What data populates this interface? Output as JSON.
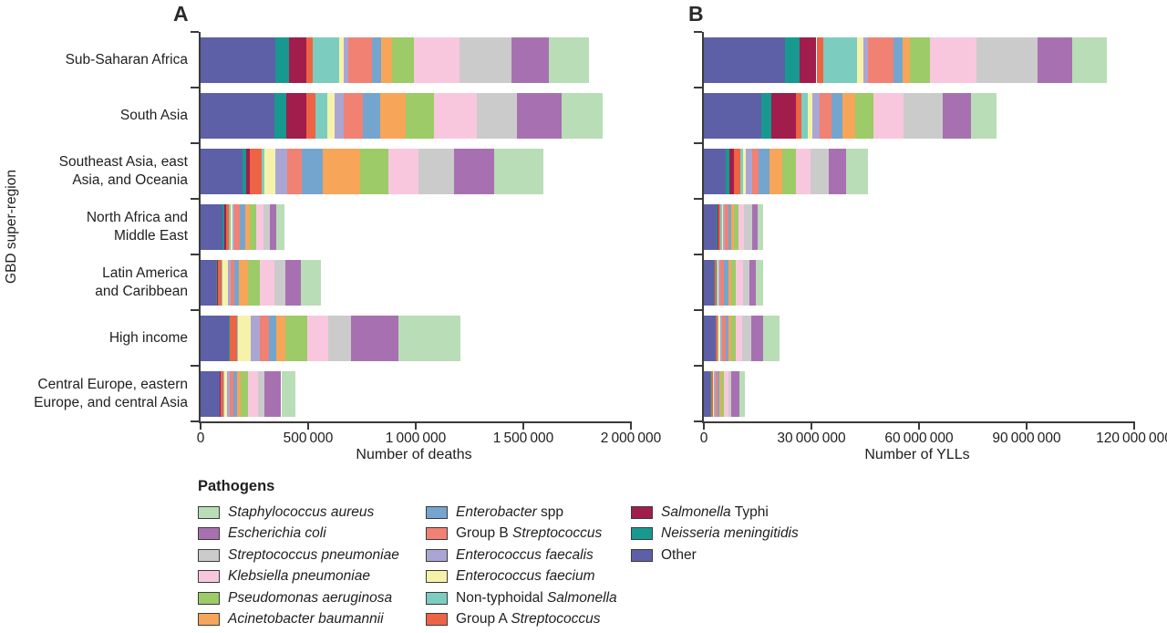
{
  "figure": {
    "panel_a_letter": "A",
    "panel_b_letter": "B",
    "y_axis_title": "GBD super-region",
    "legend_title": "Pathogens"
  },
  "pathogens": [
    {
      "id": "other",
      "pre": "Other",
      "italic": "",
      "post": "",
      "color": "#5D60A6"
    },
    {
      "id": "neisseria-meningitidis",
      "pre": "",
      "italic": "Neisseria meningitidis",
      "post": "",
      "color": "#17998F"
    },
    {
      "id": "salmonella-typhi",
      "pre": "",
      "italic": "Salmonella",
      "post": " Typhi",
      "color": "#A01D4C"
    },
    {
      "id": "group-a-streptococcus",
      "pre": "Group A ",
      "italic": "Streptococcus",
      "post": "",
      "color": "#EE6344"
    },
    {
      "id": "non-typhoidal-salmonella",
      "pre": "Non-typhoidal ",
      "italic": "Salmonella",
      "post": "",
      "color": "#7CCDBF"
    },
    {
      "id": "enterococcus-faecium",
      "pre": "",
      "italic": "Enterococcus faecium",
      "post": "",
      "color": "#F7F2A9"
    },
    {
      "id": "enterococcus-faecalis",
      "pre": "",
      "italic": "Enterococcus faecalis",
      "post": "",
      "color": "#AAA6D3"
    },
    {
      "id": "group-b-streptococcus",
      "pre": "Group B ",
      "italic": "Streptococcus",
      "post": "",
      "color": "#F08173"
    },
    {
      "id": "enterobacter-spp",
      "pre": "",
      "italic": "Enterobacter",
      "post": " spp",
      "color": "#74A5CF"
    },
    {
      "id": "acinetobacter-baumannii",
      "pre": "",
      "italic": "Acinetobacter baumannii",
      "post": "",
      "color": "#F7A558"
    },
    {
      "id": "pseudomonas-aeruginosa",
      "pre": "",
      "italic": "Pseudomonas aeruginosa",
      "post": "",
      "color": "#9CCB67"
    },
    {
      "id": "klebsiella-pneumoniae",
      "pre": "",
      "italic": "Klebsiella pneumoniae",
      "post": "",
      "color": "#F8C7DE"
    },
    {
      "id": "streptococcus-pneumoniae",
      "pre": "",
      "italic": "Streptococcus pneumoniae",
      "post": "",
      "color": "#CBCBCB"
    },
    {
      "id": "escherichia-coli",
      "pre": "",
      "italic": "Escherichia coli",
      "post": "",
      "color": "#A771B1"
    },
    {
      "id": "staphylococcus-aureus",
      "pre": "",
      "italic": "Staphylococcus aureus",
      "post": "",
      "color": "#B9DDB6"
    }
  ],
  "chart_data": [
    {
      "type": "bar",
      "panel": "A",
      "orientation": "horizontal",
      "stacked": true,
      "xlabel": "Number of deaths",
      "ylabel": "GBD super-region",
      "xlim": [
        0,
        2000000
      ],
      "xticks": [
        0,
        500000,
        1000000,
        1500000,
        2000000
      ],
      "xtick_labels": [
        "0",
        "500 000",
        "1 000 000",
        "1 500 000",
        "2 000 000"
      ],
      "legend_position": "bottom",
      "grid": false,
      "categories": [
        "Sub-Saharan Africa",
        "South Asia",
        "Southeast Asia, east\nAsia, and Oceania",
        "North Africa and\nMiddle East",
        "Latin America\nand Caribbean",
        "High income",
        "Central Europe, eastern\nEurope, and central Asia"
      ],
      "series": [
        {
          "name": "Other",
          "values": [
            348000,
            345000,
            196000,
            100000,
            74000,
            130000,
            87000
          ]
        },
        {
          "name": "Neisseria meningitidis",
          "values": [
            65000,
            52000,
            17000,
            9000,
            4000,
            4000,
            4000
          ]
        },
        {
          "name": "Salmonella Typhi",
          "values": [
            78000,
            96000,
            17000,
            9000,
            4000,
            2000,
            2000
          ]
        },
        {
          "name": "Group A Streptococcus",
          "values": [
            30000,
            43000,
            52000,
            13000,
            17000,
            35000,
            13000
          ]
        },
        {
          "name": "Non-typhoidal Salmonella",
          "values": [
            122000,
            52000,
            13000,
            9000,
            4000,
            4000,
            4000
          ]
        },
        {
          "name": "Enterococcus faecium",
          "values": [
            22000,
            35000,
            52000,
            9000,
            26000,
            57000,
            13000
          ]
        },
        {
          "name": "Enterococcus faecalis",
          "values": [
            22000,
            43000,
            57000,
            9000,
            9000,
            43000,
            13000
          ]
        },
        {
          "name": "Group B Streptococcus",
          "values": [
            109000,
            87000,
            65000,
            26000,
            17000,
            43000,
            17000
          ]
        },
        {
          "name": "Enterobacter spp",
          "values": [
            43000,
            83000,
            100000,
            22000,
            22000,
            35000,
            17000
          ]
        },
        {
          "name": "Acinetobacter baumannii",
          "values": [
            52000,
            117000,
            174000,
            22000,
            43000,
            43000,
            17000
          ]
        },
        {
          "name": "Pseudomonas aeruginosa",
          "values": [
            100000,
            130000,
            130000,
            30000,
            57000,
            100000,
            35000
          ]
        },
        {
          "name": "Klebsiella pneumoniae",
          "values": [
            213000,
            200000,
            139000,
            35000,
            65000,
            96000,
            43000
          ]
        },
        {
          "name": "Streptococcus pneumoniae",
          "values": [
            243000,
            187000,
            165000,
            30000,
            52000,
            109000,
            30000
          ]
        },
        {
          "name": "Escherichia coli",
          "values": [
            170000,
            210000,
            187000,
            30000,
            74000,
            217000,
            80000
          ]
        },
        {
          "name": "Staphylococcus aureus",
          "values": [
            187000,
            190000,
            230000,
            35000,
            90000,
            291000,
            65000
          ]
        }
      ]
    },
    {
      "type": "bar",
      "panel": "B",
      "orientation": "horizontal",
      "stacked": true,
      "xlabel": "Number of YLLs",
      "ylabel": "GBD super-region",
      "xlim": [
        0,
        120000000
      ],
      "xticks": [
        0,
        30000000,
        60000000,
        90000000,
        120000000
      ],
      "xtick_labels": [
        "0",
        "30 000 000",
        "60 000 000",
        "90 000 000",
        "120 000 000"
      ],
      "legend_position": "bottom",
      "grid": false,
      "categories": [
        "Sub-Saharan Africa",
        "South Asia",
        "Southeast Asia, east\nAsia, and Oceania",
        "North Africa and\nMiddle East",
        "Latin America\nand Caribbean",
        "High income",
        "Central Europe, eastern\nEurope, and central Asia"
      ],
      "series": [
        {
          "name": "Other",
          "values": [
            22500000,
            16000000,
            6100000,
            3500000,
            2700000,
            3200000,
            1900000
          ]
        },
        {
          "name": "Neisseria meningitidis",
          "values": [
            4300000,
            2800000,
            1100000,
            300000,
            300000,
            100000,
            100000
          ]
        },
        {
          "name": "Salmonella Typhi",
          "values": [
            4600000,
            7000000,
            1300000,
            300000,
            100000,
            100000,
            100000
          ]
        },
        {
          "name": "Group A Streptococcus",
          "values": [
            2000000,
            1300000,
            1600000,
            500000,
            400000,
            500000,
            400000
          ]
        },
        {
          "name": "Non-typhoidal Salmonella",
          "values": [
            9400000,
            1800000,
            800000,
            400000,
            300000,
            100000,
            100000
          ]
        },
        {
          "name": "Enterococcus faecium",
          "values": [
            1800000,
            1300000,
            800000,
            300000,
            300000,
            500000,
            300000
          ]
        },
        {
          "name": "Enterococcus faecalis",
          "values": [
            1200000,
            2000000,
            1900000,
            500000,
            500000,
            500000,
            400000
          ]
        },
        {
          "name": "Group B Streptococcus",
          "values": [
            7100000,
            3400000,
            1600000,
            1100000,
            1100000,
            1100000,
            500000
          ]
        },
        {
          "name": "Enterobacter spp",
          "values": [
            2600000,
            3100000,
            3200000,
            800000,
            1100000,
            800000,
            500000
          ]
        },
        {
          "name": "Acinetobacter baumannii",
          "values": [
            2000000,
            3400000,
            3500000,
            800000,
            800000,
            800000,
            500000
          ]
        },
        {
          "name": "Pseudomonas aeruginosa",
          "values": [
            5600000,
            5100000,
            3700000,
            1200000,
            1300000,
            1300000,
            800000
          ]
        },
        {
          "name": "Klebsiella pneumoniae",
          "values": [
            12800000,
            8500000,
            4200000,
            1600000,
            2100000,
            1600000,
            1300000
          ]
        },
        {
          "name": "Streptococcus pneumoniae",
          "values": [
            17100000,
            10900000,
            5000000,
            2100000,
            1600000,
            2700000,
            800000
          ]
        },
        {
          "name": "Escherichia coli",
          "values": [
            9700000,
            7800000,
            4800000,
            1600000,
            1900000,
            3200000,
            2100000
          ]
        },
        {
          "name": "Staphylococcus aureus",
          "values": [
            9700000,
            7200000,
            6100000,
            1600000,
            1900000,
            4500000,
            1600000
          ]
        }
      ]
    }
  ]
}
